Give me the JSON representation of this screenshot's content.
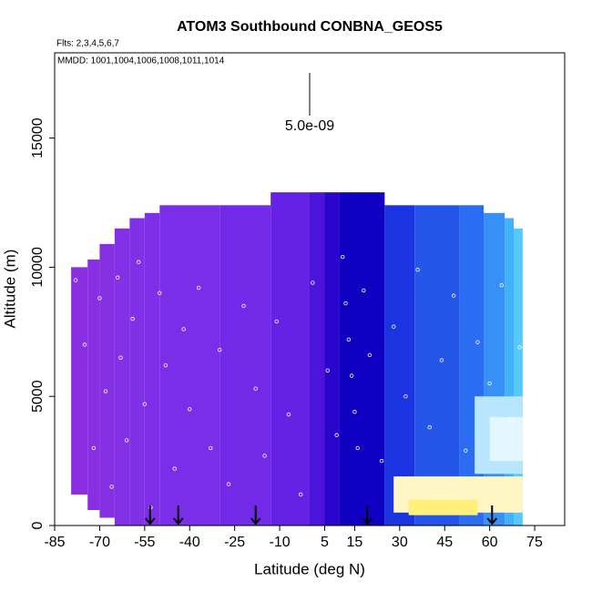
{
  "chart_data": {
    "type": "curtain",
    "title": "ATOM3 Southbound CONBNA_GEOS5",
    "flights_note": "Flts: 2,3,4,5,6,7",
    "dates_note": "MMDD: 1001,1004,1006,1008,1011,1014",
    "x_label": "Latitude (deg N)",
    "y_label": "Altitude (m)",
    "xlim": [
      -85,
      85
    ],
    "ylim": [
      0,
      18300
    ],
    "xticks": [
      -85,
      -70,
      -55,
      -40,
      -25,
      -10,
      5,
      15,
      30,
      45,
      60,
      75
    ],
    "yticks": [
      0,
      5000,
      10000,
      15000
    ],
    "scale_label": "5.0e-09",
    "cells": [
      {
        "lat": [
          -79.5,
          -74
        ],
        "alt": [
          1200,
          10000
        ],
        "color": "#8a2ee2"
      },
      {
        "lat": [
          -74,
          -70
        ],
        "alt": [
          600,
          10300
        ],
        "color": "#892fe3"
      },
      {
        "lat": [
          -70,
          -65
        ],
        "alt": [
          300,
          10900
        ],
        "color": "#8630e4"
      },
      {
        "lat": [
          -65,
          -60
        ],
        "alt": [
          0,
          11500
        ],
        "color": "#8430e6"
      },
      {
        "lat": [
          -60,
          -55
        ],
        "alt": [
          0,
          11900
        ],
        "color": "#8030e6"
      },
      {
        "lat": [
          -55,
          -50
        ],
        "alt": [
          0,
          12100
        ],
        "color": "#7e2fe7"
      },
      {
        "lat": [
          -50,
          -30
        ],
        "alt": [
          0,
          12400
        ],
        "color": "#7a2ee8"
      },
      {
        "lat": [
          -30,
          -13
        ],
        "alt": [
          0,
          12400
        ],
        "color": "#7329e8"
      },
      {
        "lat": [
          -13,
          0
        ],
        "alt": [
          0,
          12900
        ],
        "color": "#6522e4"
      },
      {
        "lat": [
          0,
          5
        ],
        "alt": [
          0,
          12900
        ],
        "color": "#4a14da"
      },
      {
        "lat": [
          5,
          10
        ],
        "alt": [
          0,
          12900
        ],
        "color": "#2a06cc"
      },
      {
        "lat": [
          10,
          25
        ],
        "alt": [
          0,
          12900
        ],
        "color": "#1000c2"
      },
      {
        "lat": [
          25,
          35
        ],
        "alt": [
          0,
          12400
        ],
        "color": "#1a34e2"
      },
      {
        "lat": [
          35,
          50
        ],
        "alt": [
          0,
          12400
        ],
        "color": "#2456ea"
      },
      {
        "lat": [
          50,
          58
        ],
        "alt": [
          0,
          12400
        ],
        "color": "#2a6cf2"
      },
      {
        "lat": [
          58,
          65
        ],
        "alt": [
          0,
          12100
        ],
        "color": "#3690f6"
      },
      {
        "lat": [
          65,
          68
        ],
        "alt": [
          0,
          11900
        ],
        "color": "#44b0fa"
      },
      {
        "lat": [
          68,
          71
        ],
        "alt": [
          0,
          11500
        ],
        "color": "#56cafe"
      },
      {
        "lat": [
          55,
          71
        ],
        "alt": [
          2000,
          5000
        ],
        "color": "#b8e6ff"
      },
      {
        "lat": [
          60,
          71
        ],
        "alt": [
          2500,
          4200
        ],
        "color": "#e4f6ff"
      },
      {
        "lat": [
          28,
          71
        ],
        "alt": [
          500,
          1900
        ],
        "color": "#fff6c4"
      },
      {
        "lat": [
          33,
          56
        ],
        "alt": [
          400,
          1000
        ],
        "color": "#fff07c"
      }
    ],
    "samples": {
      "lat": [
        -78,
        -75,
        -72,
        -70,
        -68,
        -66,
        -64,
        -63,
        -61,
        -59,
        -57,
        -55,
        -53,
        -50,
        -48,
        -45,
        -42,
        -40,
        -37,
        -33,
        -30,
        -27,
        -22,
        -18,
        -15,
        -11,
        -7,
        -3,
        1,
        6,
        9,
        11,
        12,
        13,
        14,
        15,
        16,
        18,
        20,
        24,
        28,
        32,
        36,
        40,
        44,
        48,
        52,
        56,
        60,
        64,
        67,
        70
      ],
      "alt": [
        9500,
        7000,
        3000,
        8800,
        5200,
        1500,
        9600,
        6500,
        3300,
        8000,
        10200,
        4700,
        700,
        9000,
        6200,
        2200,
        7600,
        4500,
        9200,
        3000,
        6800,
        1600,
        8500,
        5300,
        2700,
        7900,
        4300,
        1200,
        9400,
        6000,
        3500,
        10400,
        8600,
        7200,
        5800,
        4400,
        3000,
        9100,
        6600,
        2500,
        7700,
        5000,
        9900,
        3800,
        6400,
        8900,
        2900,
        7100,
        5500,
        9300,
        4100,
        6900
      ]
    },
    "arrows": [
      -53.2,
      -43.8,
      -18,
      19.2,
      60.8
    ]
  }
}
